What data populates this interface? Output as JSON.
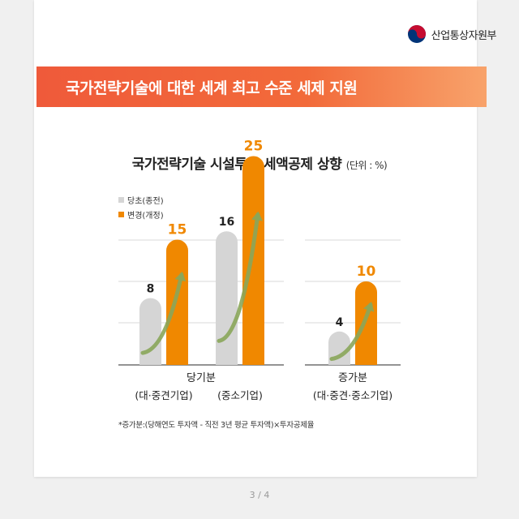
{
  "header": {
    "logo_text": "산업통상자원부",
    "colors": {
      "red": "#c60c30",
      "blue": "#003478"
    }
  },
  "banner": {
    "text": "국가전략기술에 대한 세계 최고 수준 세제 지원",
    "colors": {
      "start": "#ef5a3a",
      "end": "#f8a36b"
    }
  },
  "footnote": "*증가분:(당해연도 투자액 - 직전 3년 평균 투자액)×투자공제율",
  "pager": "3 / 4",
  "chart_data": {
    "type": "bar",
    "title": "국가전략기술 시설투자 세액공제 상향",
    "unit_label": "(단위 : %)",
    "legend_position": "top-left",
    "grid": true,
    "series": [
      {
        "name": "당초(종전)",
        "color": "#d5d5d5",
        "label_color": "#222222"
      },
      {
        "name": "변경(개정)",
        "color": "#f08800",
        "label_color": "#f08800"
      }
    ],
    "panels": [
      {
        "group_label": "당기분",
        "subgroups": [
          {
            "label": "(대·중견기업)",
            "values": [
              8,
              15
            ]
          },
          {
            "label": "(중소기업)",
            "values": [
              16,
              25
            ]
          }
        ]
      },
      {
        "group_label": "증가분",
        "subgroups": [
          {
            "label": "(대·중견·중소기업)",
            "values": [
              4,
              10
            ]
          }
        ]
      }
    ],
    "ylim": [
      0,
      30
    ],
    "arrow_color": "#8aa65a"
  }
}
